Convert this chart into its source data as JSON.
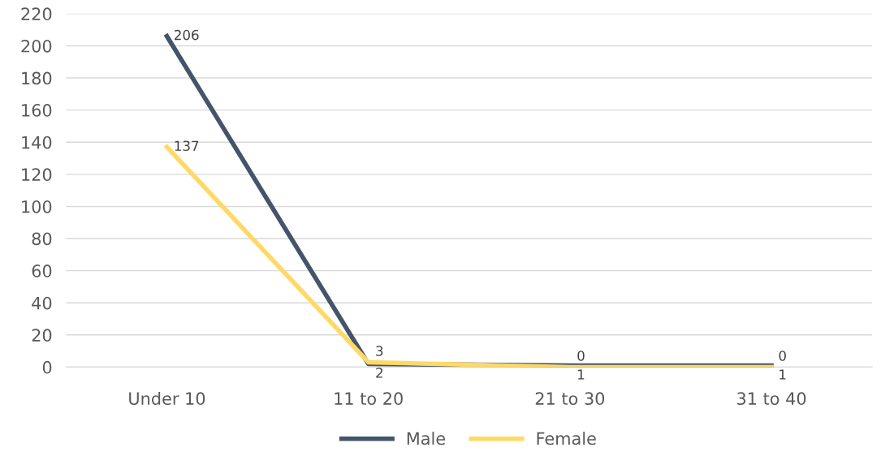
{
  "chart_data": {
    "type": "line",
    "categories": [
      "Under 10",
      "11 to 20",
      "21 to 30",
      "31 to 40"
    ],
    "series": [
      {
        "name": "Male",
        "color": "#44546a",
        "values": [
          206,
          2,
          1,
          1
        ]
      },
      {
        "name": "Female",
        "color": "#ffd966",
        "values": [
          137,
          3,
          0,
          0
        ]
      }
    ],
    "ylim": [
      0,
      220
    ],
    "yticks": [
      0,
      20,
      40,
      60,
      80,
      100,
      120,
      140,
      160,
      180,
      200,
      220
    ],
    "grid": "y",
    "legend": "bottom",
    "data_labels": true,
    "marker": "none",
    "line_style": "solid"
  }
}
